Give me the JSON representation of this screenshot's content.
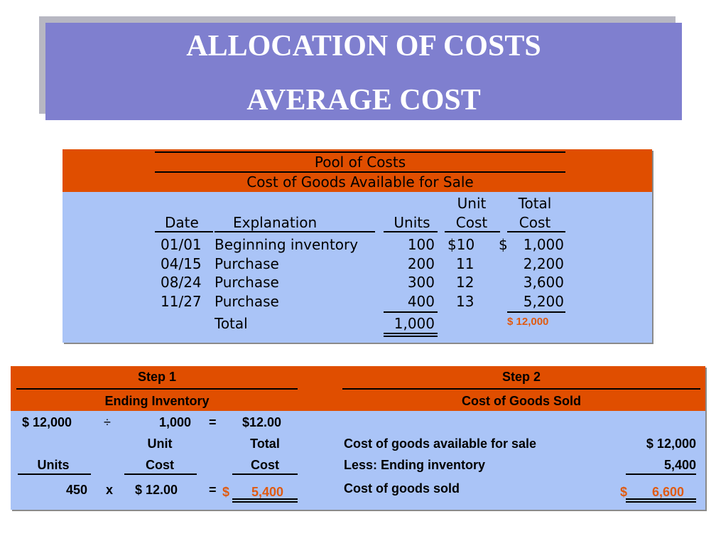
{
  "title": {
    "line1": "ALLOCATION OF COSTS",
    "line2": "AVERAGE COST"
  },
  "pool": {
    "heading1": "Pool of Costs",
    "heading2": "Cost of Goods Available for Sale",
    "columns": {
      "date": "Date",
      "explanation": "Explanation",
      "units": "Units",
      "unit_cost_1": "Unit",
      "unit_cost_2": "Cost",
      "total_cost_1": "Total",
      "total_cost_2": "Cost"
    },
    "rows": [
      {
        "date": "01/01",
        "explanation": "Beginning inventory",
        "units": "100",
        "unit_cost": "$10",
        "dollar": "$",
        "total_cost": "1,000"
      },
      {
        "date": "04/15",
        "explanation": "Purchase",
        "units": "200",
        "unit_cost": "11",
        "dollar": "",
        "total_cost": "2,200"
      },
      {
        "date": "08/24",
        "explanation": "Purchase",
        "units": "300",
        "unit_cost": "12",
        "dollar": "",
        "total_cost": "3,600"
      },
      {
        "date": "11/27",
        "explanation": "Purchase",
        "units": "400",
        "unit_cost": "13",
        "dollar": "",
        "total_cost": "5,200"
      }
    ],
    "total_label": "Total",
    "total_units": "1,000",
    "total_cost": "$ 12,000"
  },
  "steps": {
    "step1": {
      "heading": "Step 1",
      "subheading": "Ending Inventory",
      "calc_total": "$ 12,000",
      "divide_sign": "÷",
      "calc_units": "1,000",
      "equals1": "=",
      "calc_result": "$12.00",
      "col_units": "Units",
      "col_unit_cost_1": "Unit",
      "col_unit_cost_2": "Cost",
      "col_total_1": "Total",
      "col_total_2": "Cost",
      "units_value": "450",
      "times_sign": "x",
      "unit_cost_value": "$ 12.00",
      "equals2": "=",
      "result_dollar": "$",
      "result_value": "5,400"
    },
    "step2": {
      "heading": "Step 2",
      "subheading": "Cost of Goods Sold",
      "line1_label": "Cost of goods available for sale",
      "line1_value": "$ 12,000",
      "line2_label": "Less:  Ending inventory",
      "line2_value": "5,400",
      "line3_label": "Cost of goods sold",
      "line3_dollar": "$",
      "line3_value": "6,600"
    }
  },
  "colors": {
    "title_bg": "#7f7fcf",
    "header_orange": "#e04e00",
    "body_blue": "#aac4f7",
    "highlight_orange": "#e05a10"
  }
}
